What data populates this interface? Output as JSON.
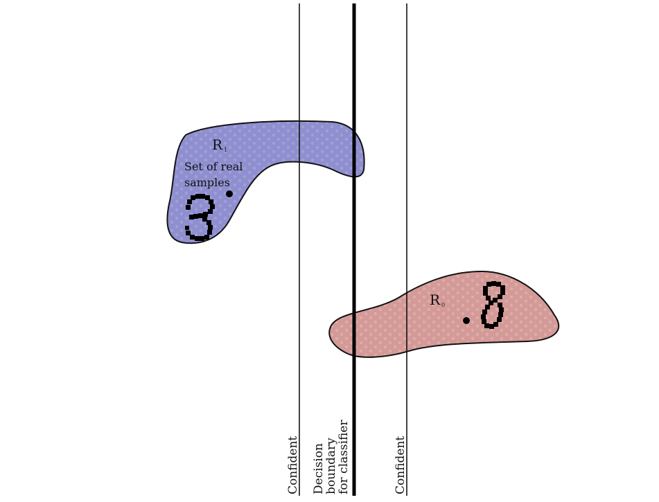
{
  "lines": {
    "left_confident": "Confident",
    "right_confident": "Confident",
    "boundary_line1": "Decision",
    "boundary_line2": "boundary",
    "boundary_line3": "for classifier"
  },
  "regions": {
    "real": {
      "symbol": "R",
      "subscript": "1",
      "caption_line1": "Set of real",
      "caption_line2": "samples",
      "digit": "3",
      "color": "#8f8fd0"
    },
    "fake": {
      "symbol": "R",
      "subscript": "0",
      "digit": "8",
      "color": "#d49a98"
    }
  }
}
